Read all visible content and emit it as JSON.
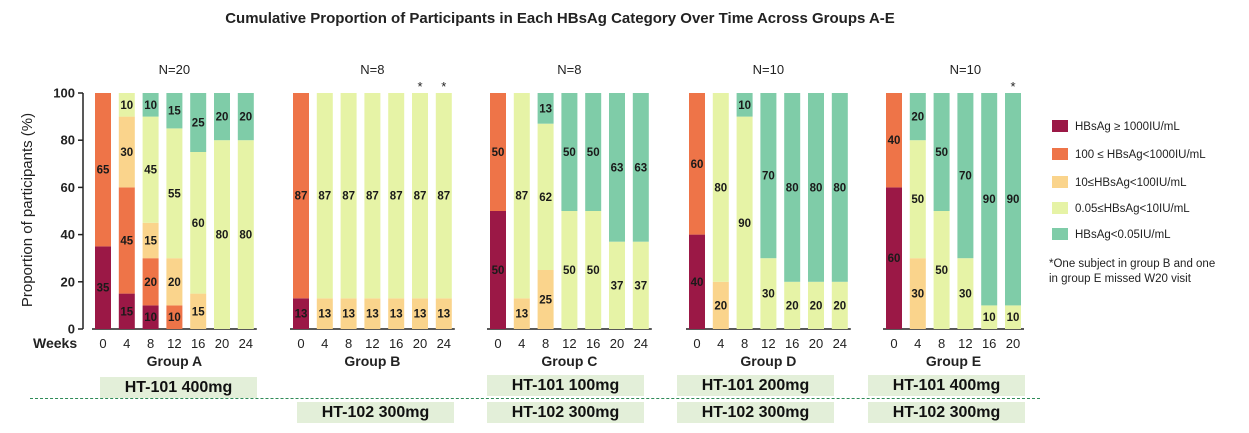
{
  "chart_data": {
    "type": "bar",
    "stacked": true,
    "title": "Cumulative Proportion of Participants in Each HBsAg Category Over Time Across Groups A-E",
    "ylabel": "Proportion of participants (%)",
    "xlabel": "Weeks",
    "ylim": [
      0,
      100
    ],
    "yticks": [
      "0",
      "20",
      "40",
      "60",
      "80",
      "100"
    ],
    "categories_legend": [
      {
        "name": "HBsAg ≥ 1000IU/mL",
        "color": "#9b1846"
      },
      {
        "name": "100 ≤ HBsAg<1000IU/mL",
        "color": "#ee7448"
      },
      {
        "name": "10≤HBsAg<100IU/mL",
        "color": "#fad48c"
      },
      {
        "name": "0.05≤HBsAg<10IU/mL",
        "color": "#e6f3a6"
      },
      {
        "name": "HBsAg<0.05IU/mL",
        "color": "#7fcca8"
      }
    ],
    "groups": [
      {
        "name": "Group A",
        "n": "N=20",
        "weeks": [
          "0",
          "4",
          "8",
          "12",
          "16",
          "20",
          "24"
        ],
        "bars": [
          [
            35,
            65,
            0,
            0,
            0
          ],
          [
            15,
            45,
            30,
            10,
            0
          ],
          [
            10,
            20,
            15,
            45,
            10
          ],
          [
            0,
            10,
            20,
            55,
            15
          ],
          [
            0,
            0,
            15,
            60,
            25
          ],
          [
            0,
            0,
            0,
            80,
            20
          ],
          [
            0,
            0,
            0,
            80,
            20
          ]
        ],
        "asterisks": []
      },
      {
        "name": "Group B",
        "n": "N=8",
        "weeks": [
          "0",
          "4",
          "8",
          "12",
          "16",
          "20",
          "24"
        ],
        "bars": [
          [
            13,
            87,
            0,
            0,
            0
          ],
          [
            0,
            0,
            13,
            87,
            0
          ],
          [
            0,
            0,
            13,
            87,
            0
          ],
          [
            0,
            0,
            13,
            87,
            0
          ],
          [
            0,
            0,
            13,
            87,
            0
          ],
          [
            0,
            0,
            13,
            87,
            0
          ],
          [
            0,
            0,
            13,
            87,
            0
          ]
        ],
        "asterisks": [
          "20",
          "24"
        ]
      },
      {
        "name": "Group C",
        "n": "N=8",
        "weeks": [
          "0",
          "4",
          "8",
          "12",
          "16",
          "20",
          "24"
        ],
        "bars": [
          [
            50,
            50,
            0,
            0,
            0
          ],
          [
            0,
            0,
            13,
            87,
            0
          ],
          [
            0,
            0,
            25,
            62,
            13
          ],
          [
            0,
            0,
            0,
            50,
            50
          ],
          [
            0,
            0,
            0,
            50,
            50
          ],
          [
            0,
            0,
            0,
            37,
            63
          ],
          [
            0,
            0,
            0,
            37,
            63
          ]
        ],
        "asterisks": []
      },
      {
        "name": "Group D",
        "n": "N=10",
        "weeks": [
          "0",
          "4",
          "8",
          "12",
          "16",
          "20",
          "24"
        ],
        "bars": [
          [
            40,
            60,
            0,
            0,
            0
          ],
          [
            0,
            0,
            20,
            80,
            0
          ],
          [
            0,
            0,
            0,
            90,
            10
          ],
          [
            0,
            0,
            0,
            30,
            70
          ],
          [
            0,
            0,
            0,
            20,
            80
          ],
          [
            0,
            0,
            0,
            20,
            80
          ],
          [
            0,
            0,
            0,
            20,
            80
          ]
        ],
        "asterisks": []
      },
      {
        "name": "Group E",
        "n": "N=10",
        "weeks": [
          "0",
          "4",
          "8",
          "12",
          "16",
          "20"
        ],
        "bars": [
          [
            60,
            40,
            0,
            0,
            0
          ],
          [
            0,
            0,
            30,
            50,
            20
          ],
          [
            0,
            0,
            0,
            50,
            50
          ],
          [
            0,
            0,
            0,
            30,
            70
          ],
          [
            0,
            0,
            0,
            10,
            90
          ],
          [
            0,
            0,
            0,
            10,
            90
          ]
        ],
        "asterisks": [
          "20"
        ]
      }
    ],
    "note_lines": [
      "*One subject in group B and one",
      "in group E missed W20 visit"
    ]
  },
  "doses": {
    "row1": [
      "HT-101 400mg",
      "HT-101 100mg",
      "HT-101 200mg",
      "HT-101 400mg"
    ],
    "row2": [
      "HT-102 300mg",
      "HT-102 300mg",
      "HT-102 300mg",
      "HT-102 300mg"
    ]
  }
}
